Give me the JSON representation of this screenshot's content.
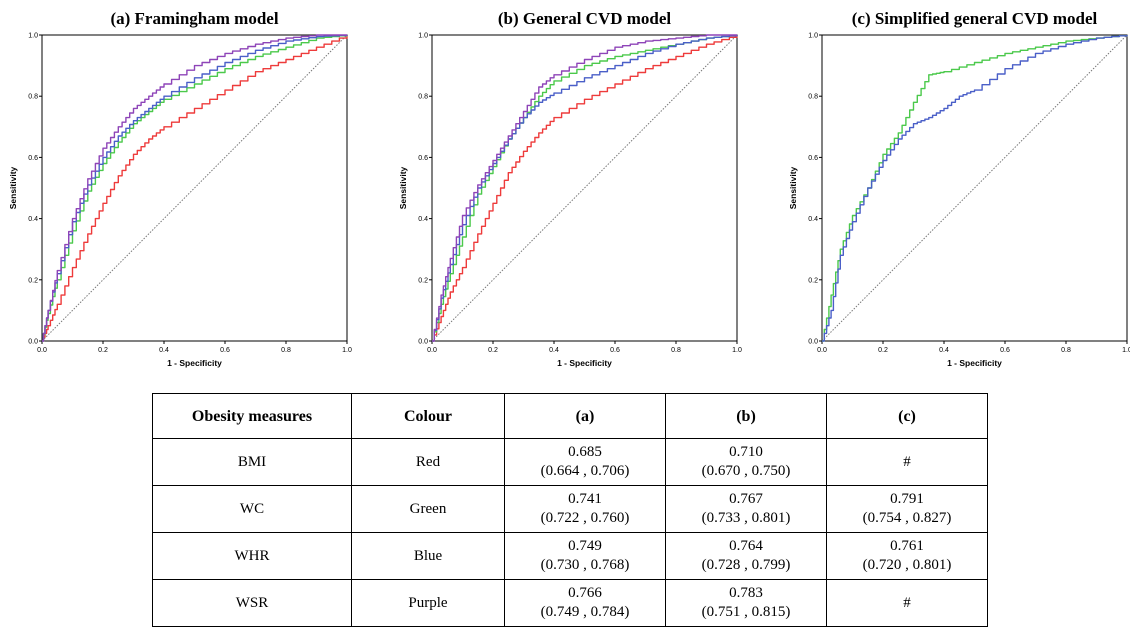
{
  "chart_data": [
    {
      "type": "line",
      "title": "(a) Framingham model",
      "xlabel": "1 - Specificity",
      "ylabel": "Sensitivity",
      "xlim": [
        0,
        1
      ],
      "ylim": [
        0,
        1
      ],
      "x_ticks": [
        "0.0",
        "0.2",
        "0.4",
        "0.6",
        "0.8",
        "1.0"
      ],
      "y_ticks": [
        "0.0",
        "0.2",
        "0.4",
        "0.6",
        "0.8",
        "1.0"
      ],
      "reference_line": "diagonal",
      "series": [
        {
          "color": "#ee3b3b",
          "points": [
            [
              0,
              0
            ],
            [
              0.02,
              0.05
            ],
            [
              0.05,
              0.12
            ],
            [
              0.1,
              0.24
            ],
            [
              0.15,
              0.35
            ],
            [
              0.2,
              0.45
            ],
            [
              0.25,
              0.54
            ],
            [
              0.3,
              0.61
            ],
            [
              0.35,
              0.66
            ],
            [
              0.4,
              0.7
            ],
            [
              0.5,
              0.76
            ],
            [
              0.6,
              0.82
            ],
            [
              0.7,
              0.88
            ],
            [
              0.8,
              0.92
            ],
            [
              0.9,
              0.96
            ],
            [
              1,
              1
            ]
          ]
        },
        {
          "color": "#4bc94b",
          "points": [
            [
              0,
              0
            ],
            [
              0.02,
              0.09
            ],
            [
              0.05,
              0.2
            ],
            [
              0.1,
              0.36
            ],
            [
              0.15,
              0.49
            ],
            [
              0.2,
              0.58
            ],
            [
              0.25,
              0.65
            ],
            [
              0.3,
              0.71
            ],
            [
              0.35,
              0.75
            ],
            [
              0.4,
              0.79
            ],
            [
              0.5,
              0.84
            ],
            [
              0.6,
              0.89
            ],
            [
              0.7,
              0.93
            ],
            [
              0.8,
              0.96
            ],
            [
              0.9,
              0.99
            ],
            [
              1,
              1
            ]
          ]
        },
        {
          "color": "#4a5fc8",
          "points": [
            [
              0,
              0
            ],
            [
              0.02,
              0.1
            ],
            [
              0.05,
              0.22
            ],
            [
              0.1,
              0.39
            ],
            [
              0.15,
              0.51
            ],
            [
              0.2,
              0.6
            ],
            [
              0.25,
              0.67
            ],
            [
              0.3,
              0.72
            ],
            [
              0.35,
              0.76
            ],
            [
              0.4,
              0.8
            ],
            [
              0.5,
              0.86
            ],
            [
              0.6,
              0.91
            ],
            [
              0.7,
              0.95
            ],
            [
              0.8,
              0.98
            ],
            [
              0.9,
              0.995
            ],
            [
              1,
              1
            ]
          ]
        },
        {
          "color": "#8e44b8",
          "points": [
            [
              0,
              0
            ],
            [
              0.02,
              0.1
            ],
            [
              0.05,
              0.23
            ],
            [
              0.1,
              0.4
            ],
            [
              0.15,
              0.53
            ],
            [
              0.2,
              0.63
            ],
            [
              0.25,
              0.7
            ],
            [
              0.3,
              0.76
            ],
            [
              0.35,
              0.8
            ],
            [
              0.4,
              0.84
            ],
            [
              0.5,
              0.9
            ],
            [
              0.6,
              0.94
            ],
            [
              0.7,
              0.97
            ],
            [
              0.8,
              0.99
            ],
            [
              0.9,
              1
            ],
            [
              1,
              1
            ]
          ]
        }
      ]
    },
    {
      "type": "line",
      "title": "(b) General CVD model",
      "xlabel": "1 - Specificity",
      "ylabel": "Sensitivity",
      "xlim": [
        0,
        1
      ],
      "ylim": [
        0,
        1
      ],
      "x_ticks": [
        "0.0",
        "0.2",
        "0.4",
        "0.6",
        "0.8",
        "1.0"
      ],
      "y_ticks": [
        "0.0",
        "0.2",
        "0.4",
        "0.6",
        "0.8",
        "1.0"
      ],
      "reference_line": "diagonal",
      "series": [
        {
          "color": "#ee3b3b",
          "points": [
            [
              0,
              0
            ],
            [
              0.03,
              0.08
            ],
            [
              0.06,
              0.16
            ],
            [
              0.1,
              0.24
            ],
            [
              0.15,
              0.35
            ],
            [
              0.2,
              0.45
            ],
            [
              0.25,
              0.55
            ],
            [
              0.3,
              0.62
            ],
            [
              0.35,
              0.68
            ],
            [
              0.4,
              0.73
            ],
            [
              0.5,
              0.79
            ],
            [
              0.6,
              0.84
            ],
            [
              0.7,
              0.89
            ],
            [
              0.8,
              0.93
            ],
            [
              0.9,
              0.97
            ],
            [
              1,
              1
            ]
          ]
        },
        {
          "color": "#4bc94b",
          "points": [
            [
              0,
              0
            ],
            [
              0.03,
              0.12
            ],
            [
              0.06,
              0.22
            ],
            [
              0.1,
              0.34
            ],
            [
              0.15,
              0.48
            ],
            [
              0.2,
              0.57
            ],
            [
              0.25,
              0.66
            ],
            [
              0.3,
              0.73
            ],
            [
              0.35,
              0.8
            ],
            [
              0.4,
              0.85
            ],
            [
              0.5,
              0.9
            ],
            [
              0.6,
              0.93
            ],
            [
              0.7,
              0.95
            ],
            [
              0.8,
              0.97
            ],
            [
              0.9,
              0.99
            ],
            [
              1,
              1
            ]
          ]
        },
        {
          "color": "#4a5fc8",
          "points": [
            [
              0,
              0
            ],
            [
              0.03,
              0.14
            ],
            [
              0.06,
              0.25
            ],
            [
              0.1,
              0.38
            ],
            [
              0.15,
              0.5
            ],
            [
              0.2,
              0.58
            ],
            [
              0.25,
              0.66
            ],
            [
              0.3,
              0.73
            ],
            [
              0.35,
              0.78
            ],
            [
              0.4,
              0.81
            ],
            [
              0.5,
              0.86
            ],
            [
              0.6,
              0.9
            ],
            [
              0.7,
              0.94
            ],
            [
              0.8,
              0.97
            ],
            [
              0.9,
              0.99
            ],
            [
              1,
              1
            ]
          ]
        },
        {
          "color": "#8e44b8",
          "points": [
            [
              0,
              0
            ],
            [
              0.03,
              0.15
            ],
            [
              0.06,
              0.27
            ],
            [
              0.1,
              0.41
            ],
            [
              0.15,
              0.51
            ],
            [
              0.2,
              0.59
            ],
            [
              0.25,
              0.67
            ],
            [
              0.3,
              0.75
            ],
            [
              0.35,
              0.83
            ],
            [
              0.4,
              0.87
            ],
            [
              0.5,
              0.92
            ],
            [
              0.6,
              0.96
            ],
            [
              0.7,
              0.98
            ],
            [
              0.8,
              0.99
            ],
            [
              0.9,
              1
            ],
            [
              1,
              1
            ]
          ]
        }
      ]
    },
    {
      "type": "line",
      "title": "(c) Simplified  general CVD model",
      "xlabel": "1 - Specificity",
      "ylabel": "Sensitivity",
      "xlim": [
        0,
        1
      ],
      "ylim": [
        0,
        1
      ],
      "x_ticks": [
        "0.0",
        "0.2",
        "0.4",
        "0.6",
        "0.8",
        "1.0"
      ],
      "y_ticks": [
        "0.0",
        "0.2",
        "0.4",
        "0.6",
        "0.8",
        "1.0"
      ],
      "reference_line": "diagonal",
      "series": [
        {
          "color": "#4bc94b",
          "points": [
            [
              0,
              0
            ],
            [
              0.03,
              0.15
            ],
            [
              0.06,
              0.3
            ],
            [
              0.1,
              0.41
            ],
            [
              0.15,
              0.5
            ],
            [
              0.2,
              0.61
            ],
            [
              0.25,
              0.68
            ],
            [
              0.3,
              0.78
            ],
            [
              0.35,
              0.87
            ],
            [
              0.4,
              0.88
            ],
            [
              0.5,
              0.91
            ],
            [
              0.6,
              0.94
            ],
            [
              0.7,
              0.96
            ],
            [
              0.8,
              0.98
            ],
            [
              0.9,
              0.99
            ],
            [
              1,
              1
            ]
          ]
        },
        {
          "color": "#4a5fc8",
          "points": [
            [
              0,
              0
            ],
            [
              0.03,
              0.1
            ],
            [
              0.06,
              0.28
            ],
            [
              0.1,
              0.39
            ],
            [
              0.15,
              0.5
            ],
            [
              0.2,
              0.59
            ],
            [
              0.25,
              0.66
            ],
            [
              0.3,
              0.71
            ],
            [
              0.35,
              0.73
            ],
            [
              0.4,
              0.76
            ],
            [
              0.45,
              0.8
            ],
            [
              0.5,
              0.82
            ],
            [
              0.6,
              0.89
            ],
            [
              0.7,
              0.94
            ],
            [
              0.8,
              0.97
            ],
            [
              0.9,
              0.99
            ],
            [
              1,
              1
            ]
          ]
        }
      ]
    }
  ],
  "table": {
    "headers": [
      "Obesity measures",
      "Colour",
      "(a)",
      "(b)",
      "(c)"
    ],
    "rows": [
      {
        "measure": "BMI",
        "colour": "Red",
        "a": "0.685",
        "a_ci": "(0.664 , 0.706)",
        "b": "0.710",
        "b_ci": "(0.670 , 0.750)",
        "c": "#",
        "c_ci": ""
      },
      {
        "measure": "WC",
        "colour": "Green",
        "a": "0.741",
        "a_ci": "(0.722 , 0.760)",
        "b": "0.767",
        "b_ci": "(0.733 , 0.801)",
        "c": "0.791",
        "c_ci": "(0.754 , 0.827)"
      },
      {
        "measure": "WHR",
        "colour": "Blue",
        "a": "0.749",
        "a_ci": "(0.730 , 0.768)",
        "b": "0.764",
        "b_ci": "(0.728 , 0.799)",
        "c": "0.761",
        "c_ci": "(0.720 , 0.801)"
      },
      {
        "measure": "WSR",
        "colour": "Purple",
        "a": "0.766",
        "a_ci": "(0.749 , 0.784)",
        "b": "0.783",
        "b_ci": "(0.751 , 0.815)",
        "c": "#",
        "c_ci": ""
      }
    ]
  }
}
